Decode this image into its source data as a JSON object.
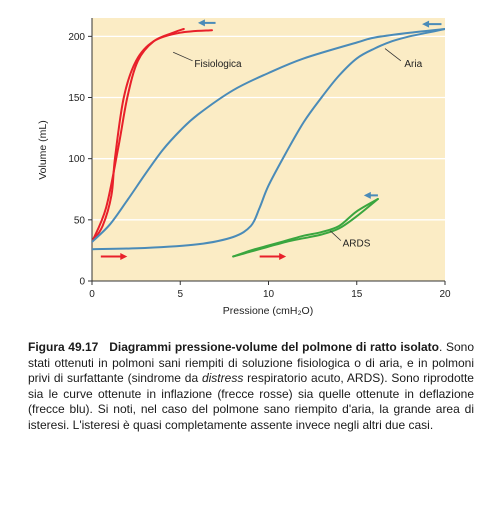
{
  "chart_data": {
    "type": "line",
    "xlabel": "Pressione (cmH₂O)",
    "ylabel": "Volume (mL)",
    "xlim": [
      0,
      20
    ],
    "ylim": [
      0,
      215
    ],
    "xticks": [
      0,
      5,
      10,
      15,
      20
    ],
    "yticks": [
      0,
      50,
      100,
      150,
      200
    ],
    "grid": "horizontal",
    "background": "#fbecc5",
    "series": [
      {
        "name": "Fisiologica",
        "color": "#e8202a",
        "inflation": [
          [
            0,
            32
          ],
          [
            0.8,
            60
          ],
          [
            1.5,
            110
          ],
          [
            2.0,
            150
          ],
          [
            2.6,
            180
          ],
          [
            3.5,
            196
          ],
          [
            4.6,
            203
          ],
          [
            5.2,
            206
          ]
        ],
        "deflation": [
          [
            6.8,
            205
          ],
          [
            5.0,
            203
          ],
          [
            3.5,
            196
          ],
          [
            2.5,
            180
          ],
          [
            1.8,
            150
          ],
          [
            1.3,
            100
          ],
          [
            1.1,
            70
          ],
          [
            0.6,
            45
          ],
          [
            0,
            32
          ]
        ]
      },
      {
        "name": "Aria",
        "color": "#4a8bb8",
        "inflation": [
          [
            0,
            26
          ],
          [
            3,
            27
          ],
          [
            6,
            30
          ],
          [
            8,
            36
          ],
          [
            9,
            45
          ],
          [
            9.5,
            60
          ],
          [
            10,
            78
          ],
          [
            11,
            105
          ],
          [
            12,
            130
          ],
          [
            13,
            150
          ],
          [
            14,
            168
          ],
          [
            15,
            182
          ],
          [
            16,
            190
          ],
          [
            17,
            196
          ],
          [
            18,
            200
          ],
          [
            19,
            203
          ],
          [
            20,
            206
          ]
        ],
        "deflation": [
          [
            20,
            206
          ],
          [
            18,
            203
          ],
          [
            16,
            199
          ],
          [
            15,
            195
          ],
          [
            12,
            182
          ],
          [
            10,
            170
          ],
          [
            8,
            156
          ],
          [
            6,
            136
          ],
          [
            5,
            123
          ],
          [
            4,
            107
          ],
          [
            3,
            87
          ],
          [
            2,
            66
          ],
          [
            1,
            46
          ],
          [
            0,
            32
          ]
        ]
      },
      {
        "name": "ARDS",
        "color": "#3aa63f",
        "inflation": [
          [
            8,
            20
          ],
          [
            9,
            24
          ],
          [
            10,
            28
          ],
          [
            11,
            32
          ],
          [
            12,
            35
          ],
          [
            13,
            38
          ],
          [
            14,
            43
          ],
          [
            15,
            53
          ],
          [
            16.2,
            67
          ]
        ],
        "deflation": [
          [
            16.2,
            67
          ],
          [
            15,
            57
          ],
          [
            14,
            45
          ],
          [
            13,
            40
          ],
          [
            12,
            37
          ],
          [
            11,
            33
          ],
          [
            10,
            29
          ],
          [
            9,
            25
          ],
          [
            8,
            20
          ]
        ]
      }
    ],
    "arrows": [
      {
        "color": "#e8202a",
        "x1": 0.5,
        "x2": 2.0,
        "y": 20
      },
      {
        "color": "#e8202a",
        "x1": 9.5,
        "x2": 11.0,
        "y": 20
      },
      {
        "color": "#4a8bb8",
        "x1": 7.0,
        "x2": 6.0,
        "y": 211
      },
      {
        "color": "#4a8bb8",
        "x1": 19.8,
        "x2": 18.7,
        "y": 210
      },
      {
        "color": "#4a8bb8",
        "x1": 16.2,
        "x2": 15.4,
        "y": 70
      }
    ],
    "annotations": [
      {
        "text": "Fisiologica",
        "x": 5.8,
        "y": 178,
        "leader": [
          [
            4.6,
            187
          ],
          [
            5.7,
            180
          ]
        ]
      },
      {
        "text": "Aria",
        "x": 17.7,
        "y": 178,
        "leader": [
          [
            16.6,
            190
          ],
          [
            17.5,
            180
          ]
        ]
      },
      {
        "text": "ARDS",
        "x": 14.2,
        "y": 31,
        "leader": [
          [
            13.5,
            41
          ],
          [
            14.1,
            33
          ]
        ]
      }
    ]
  },
  "caption": {
    "label": "Figura 49.17",
    "title": "Diagrammi pressione-volume del polmone di ratto isolato",
    "text_before": ". Sono stati ottenuti in polmoni sani riempiti di soluzione fisiologica o di aria, e in polmoni privi di surfattante (sindrome da ",
    "italic": "distress",
    "text_after": " respiratorio acuto, ARDS). Sono riprodotte sia le curve ottenute in inflazione (frecce rosse) sia quelle ottenute in deflazione (frecce blu). Si noti, nel caso del polmone sano riempito d'aria, la grande area di isteresi. L'isteresi è quasi completamente assente invece negli altri due casi."
  }
}
